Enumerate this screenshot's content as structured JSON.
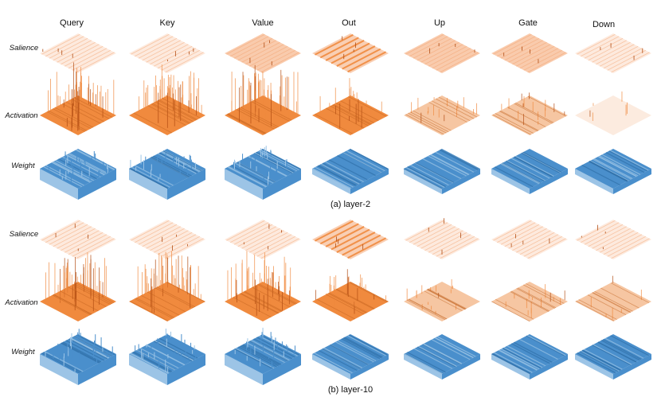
{
  "columns": [
    "Query",
    "Key",
    "Value",
    "Out",
    "Up",
    "Gate",
    "Down"
  ],
  "rows": [
    "Salience",
    "Activation",
    "Weight"
  ],
  "panels": [
    {
      "caption": "(a) layer-2"
    },
    {
      "caption": "(b) layer-10"
    }
  ],
  "colors": {
    "salience": "#f4a06a",
    "activation": "#f08a3e",
    "activation_light": "#f6c6a2",
    "weight": "#4a8fcc",
    "weight_light": "#9cc4e6",
    "spike": "#b04a10"
  },
  "surface_styles": {
    "panel_a": {
      "Salience": [
        "faint",
        "faint",
        "medium",
        "stripes",
        "medium",
        "medium",
        "faint"
      ],
      "Activation": [
        "spiky",
        "spiky",
        "spiky",
        "peaked",
        "medium",
        "medium",
        "faint"
      ],
      "Weight": [
        "tall",
        "tall",
        "tall",
        "flat",
        "flat",
        "flat",
        "flat"
      ]
    },
    "panel_b": {
      "Salience": [
        "faint",
        "faint",
        "faint",
        "stripes",
        "faint",
        "faint",
        "faint"
      ],
      "Activation": [
        "spiky",
        "spiky",
        "spiky",
        "peaked",
        "medium",
        "medium",
        "light"
      ],
      "Weight": [
        "tall",
        "tall",
        "tall",
        "flat",
        "flat",
        "flat",
        "flat"
      ]
    }
  }
}
